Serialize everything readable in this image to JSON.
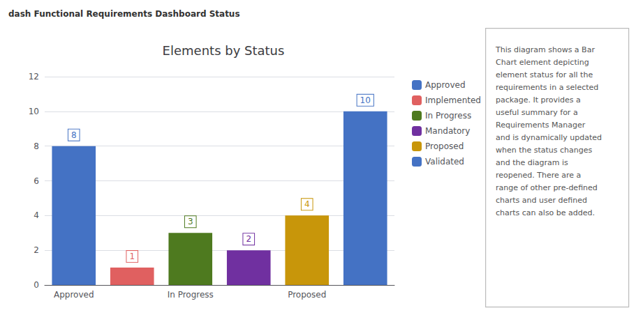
{
  "chart_data": {
    "type": "bar",
    "title": "Elements by Status",
    "categories": [
      "Approved",
      null,
      "In Progress",
      null,
      "Proposed",
      null
    ],
    "series": [
      {
        "name": "Approved",
        "color": "#4472C4",
        "values": [
          8,
          null,
          null,
          null,
          null,
          null
        ]
      },
      {
        "name": "Implemented",
        "color": "#E06060",
        "values": [
          null,
          1,
          null,
          null,
          null,
          null
        ]
      },
      {
        "name": "In Progress",
        "color": "#4E7A1F",
        "values": [
          null,
          null,
          3,
          null,
          null,
          null
        ]
      },
      {
        "name": "Mandatory",
        "color": "#7030A0",
        "values": [
          null,
          null,
          null,
          2,
          null,
          null
        ]
      },
      {
        "name": "Proposed",
        "color": "#C8960A",
        "values": [
          null,
          null,
          null,
          null,
          4,
          null
        ]
      },
      {
        "name": "Validated",
        "color": "#4472C4",
        "values": [
          null,
          null,
          null,
          null,
          null,
          10
        ]
      }
    ],
    "ylim": [
      0,
      12
    ],
    "yticks": [
      0,
      2,
      4,
      6,
      8,
      10,
      12
    ],
    "grid": true,
    "legend": "right",
    "data_labels": true,
    "annotations": [
      "dash Functional Requirements Dashboard Status",
      "This diagram shows a Bar\nChart element depicting\nelement status for all the\nrequirements in a selected\npackage. It provides a\nuseful summary for a\nRequirements Manager\nand is dynamically updated\nwhen the status changes\nand the diagram is\nreopened. There are a\nrange of other pre-defined\ncharts and user defined\ncharts can also be added."
    ]
  }
}
